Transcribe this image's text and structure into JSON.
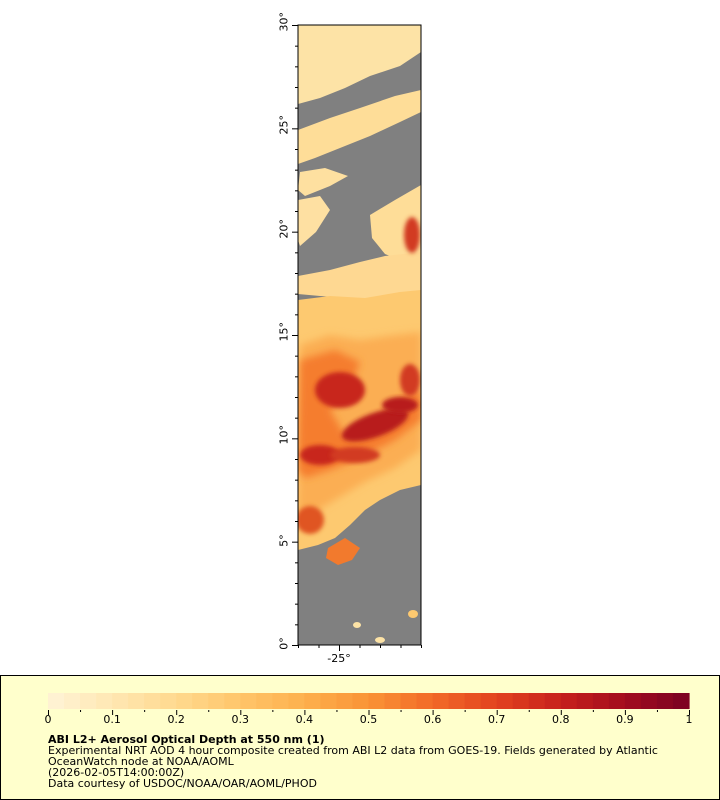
{
  "map": {
    "y_ticks": [
      {
        "label": "0°",
        "value": 0
      },
      {
        "label": "5°",
        "value": 5
      },
      {
        "label": "10°",
        "value": 10
      },
      {
        "label": "15°",
        "value": 15
      },
      {
        "label": "20°",
        "value": 20
      },
      {
        "label": "25°",
        "value": 25
      },
      {
        "label": "30°",
        "value": 30
      }
    ],
    "x_ticks": [
      {
        "label": "-25°",
        "value": -25
      }
    ],
    "no_data_color": "#808080",
    "land_color": "#808080"
  },
  "chart_data": {
    "type": "heatmap",
    "xlim": [
      -27,
      -21
    ],
    "ylim": [
      0,
      30
    ],
    "colorbar": {
      "range": [
        0,
        1
      ],
      "tick_labels": [
        "0",
        "0.1",
        "0.2",
        "0.3",
        "0.4",
        "0.5",
        "0.6",
        "0.7",
        "0.8",
        "0.9",
        "1"
      ],
      "colors": [
        "#fff3d6",
        "#ffe7b3",
        "#ffd98e",
        "#ffc56a",
        "#fdb04d",
        "#fa9336",
        "#f26a28",
        "#e2421f",
        "#c7211d",
        "#a20c1e",
        "#7a0222"
      ]
    }
  },
  "caption": {
    "title": "ABI L2+ Aerosol Optical Depth at 550 nm (1)",
    "line1": "Experimental NRT AOD 4 hour composite created from ABI L2 data from GOES-19. Fields generated by Atlantic",
    "line2": "OceanWatch node at NOAA/AOML",
    "line3": "(2026-02-05T14:00:00Z)",
    "line4": "Data courtesy of USDOC/NOAA/OAR/AOML/PHOD"
  }
}
